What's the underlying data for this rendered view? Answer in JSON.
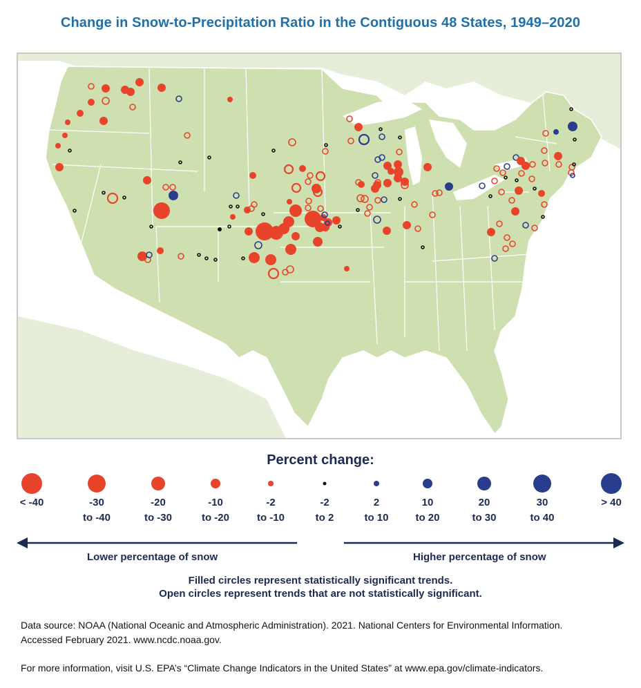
{
  "title": "Change in Snow-to-Precipitation Ratio in the Contiguous 48 States, 1949–2020",
  "colors": {
    "decrease": "#e8442b",
    "neutral": "#111111",
    "increase": "#2a3c8c",
    "land_us": "#cfe0b0",
    "land_other": "#e6eeda",
    "water": "#ffffff",
    "title": "#1f6fa8",
    "legend_text": "#1c2a52"
  },
  "legend": {
    "heading": "Percent change:",
    "items": [
      {
        "label": "< -40",
        "category": "decrease"
      },
      {
        "label": "-30\nto -40",
        "category": "decrease"
      },
      {
        "label": "-20\nto -30",
        "category": "decrease"
      },
      {
        "label": "-10\nto -20",
        "category": "decrease"
      },
      {
        "label": "-2\nto -10",
        "category": "decrease"
      },
      {
        "label": "-2\nto 2",
        "category": "neutral"
      },
      {
        "label": "2\nto 10",
        "category": "increase"
      },
      {
        "label": "10\nto 20",
        "category": "increase"
      },
      {
        "label": "20\nto 30",
        "category": "increase"
      },
      {
        "label": "30\nto 40",
        "category": "increase"
      },
      {
        "label": "> 40",
        "category": "increase"
      }
    ],
    "lower_label": "Lower percentage of snow",
    "higher_label": "Higher percentage of snow"
  },
  "notes": {
    "filled": "Filled circles represent statistically significant trends.",
    "open": "Open circles represent trends that are not statistically significant."
  },
  "source": {
    "line1": "Data source: NOAA (National Oceanic and Atmospheric Administration). 2021. National Centers for Environmental Information.",
    "line2": "Accessed February 2021. www.ncdc.noaa.gov.",
    "line3": "For more information, visit U.S. EPA’s “Climate Change Indicators in the United States” at www.epa.gov/climate-indicators."
  }
}
